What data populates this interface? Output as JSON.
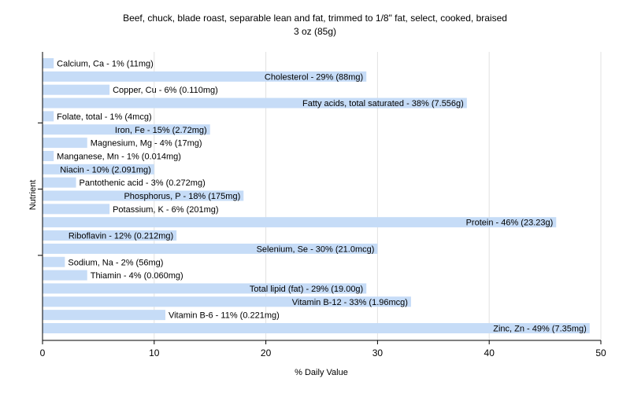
{
  "chart_data": {
    "type": "bar",
    "orientation": "horizontal",
    "title": "Beef, chuck, blade roast, separable lean and fat, trimmed to 1/8\" fat, select, cooked, braised",
    "subtitle": "3 oz (85g)",
    "xlabel": "% Daily Value",
    "ylabel": "Nutrient",
    "xlim": [
      0,
      50
    ],
    "xticks": [
      0,
      10,
      20,
      30,
      40,
      50
    ],
    "grid": true,
    "colors": {
      "bar": "#c6dcf7",
      "grid": "#e2e2e2",
      "axis": "#000000",
      "text": "#000000"
    },
    "categories": [
      "Calcium, Ca",
      "Cholesterol",
      "Copper, Cu",
      "Fatty acids, total saturated",
      "Folate, total",
      "Iron, Fe",
      "Magnesium, Mg",
      "Manganese, Mn",
      "Niacin",
      "Pantothenic acid",
      "Phosphorus, P",
      "Potassium, K",
      "Protein",
      "Riboflavin",
      "Selenium, Se",
      "Sodium, Na",
      "Thiamin",
      "Total lipid (fat)",
      "Vitamin B-12",
      "Vitamin B-6",
      "Zinc, Zn"
    ],
    "values": [
      1,
      29,
      6,
      38,
      1,
      15,
      4,
      1,
      10,
      3,
      18,
      6,
      46,
      12,
      30,
      2,
      4,
      29,
      33,
      11,
      49
    ],
    "labels": [
      "Calcium, Ca - 1% (11mg)",
      "Cholesterol - 29% (88mg)",
      "Copper, Cu - 6% (0.110mg)",
      "Fatty acids, total saturated - 38% (7.556g)",
      "Folate, total - 1% (4mcg)",
      "Iron, Fe - 15% (2.72mg)",
      "Magnesium, Mg - 4% (17mg)",
      "Manganese, Mn - 1% (0.014mg)",
      "Niacin - 10% (2.091mg)",
      "Pantothenic acid - 3% (0.272mg)",
      "Phosphorus, P - 18% (175mg)",
      "Potassium, K - 6% (201mg)",
      "Protein - 46% (23.23g)",
      "Riboflavin - 12% (0.212mg)",
      "Selenium, Se - 30% (21.0mcg)",
      "Sodium, Na - 2% (56mg)",
      "Thiamin - 4% (0.060mg)",
      "Total lipid (fat) - 29% (19.00g)",
      "Vitamin B-12 - 33% (1.96mcg)",
      "Vitamin B-6 - 11% (0.221mg)",
      "Zinc, Zn - 49% (7.35mg)"
    ]
  }
}
